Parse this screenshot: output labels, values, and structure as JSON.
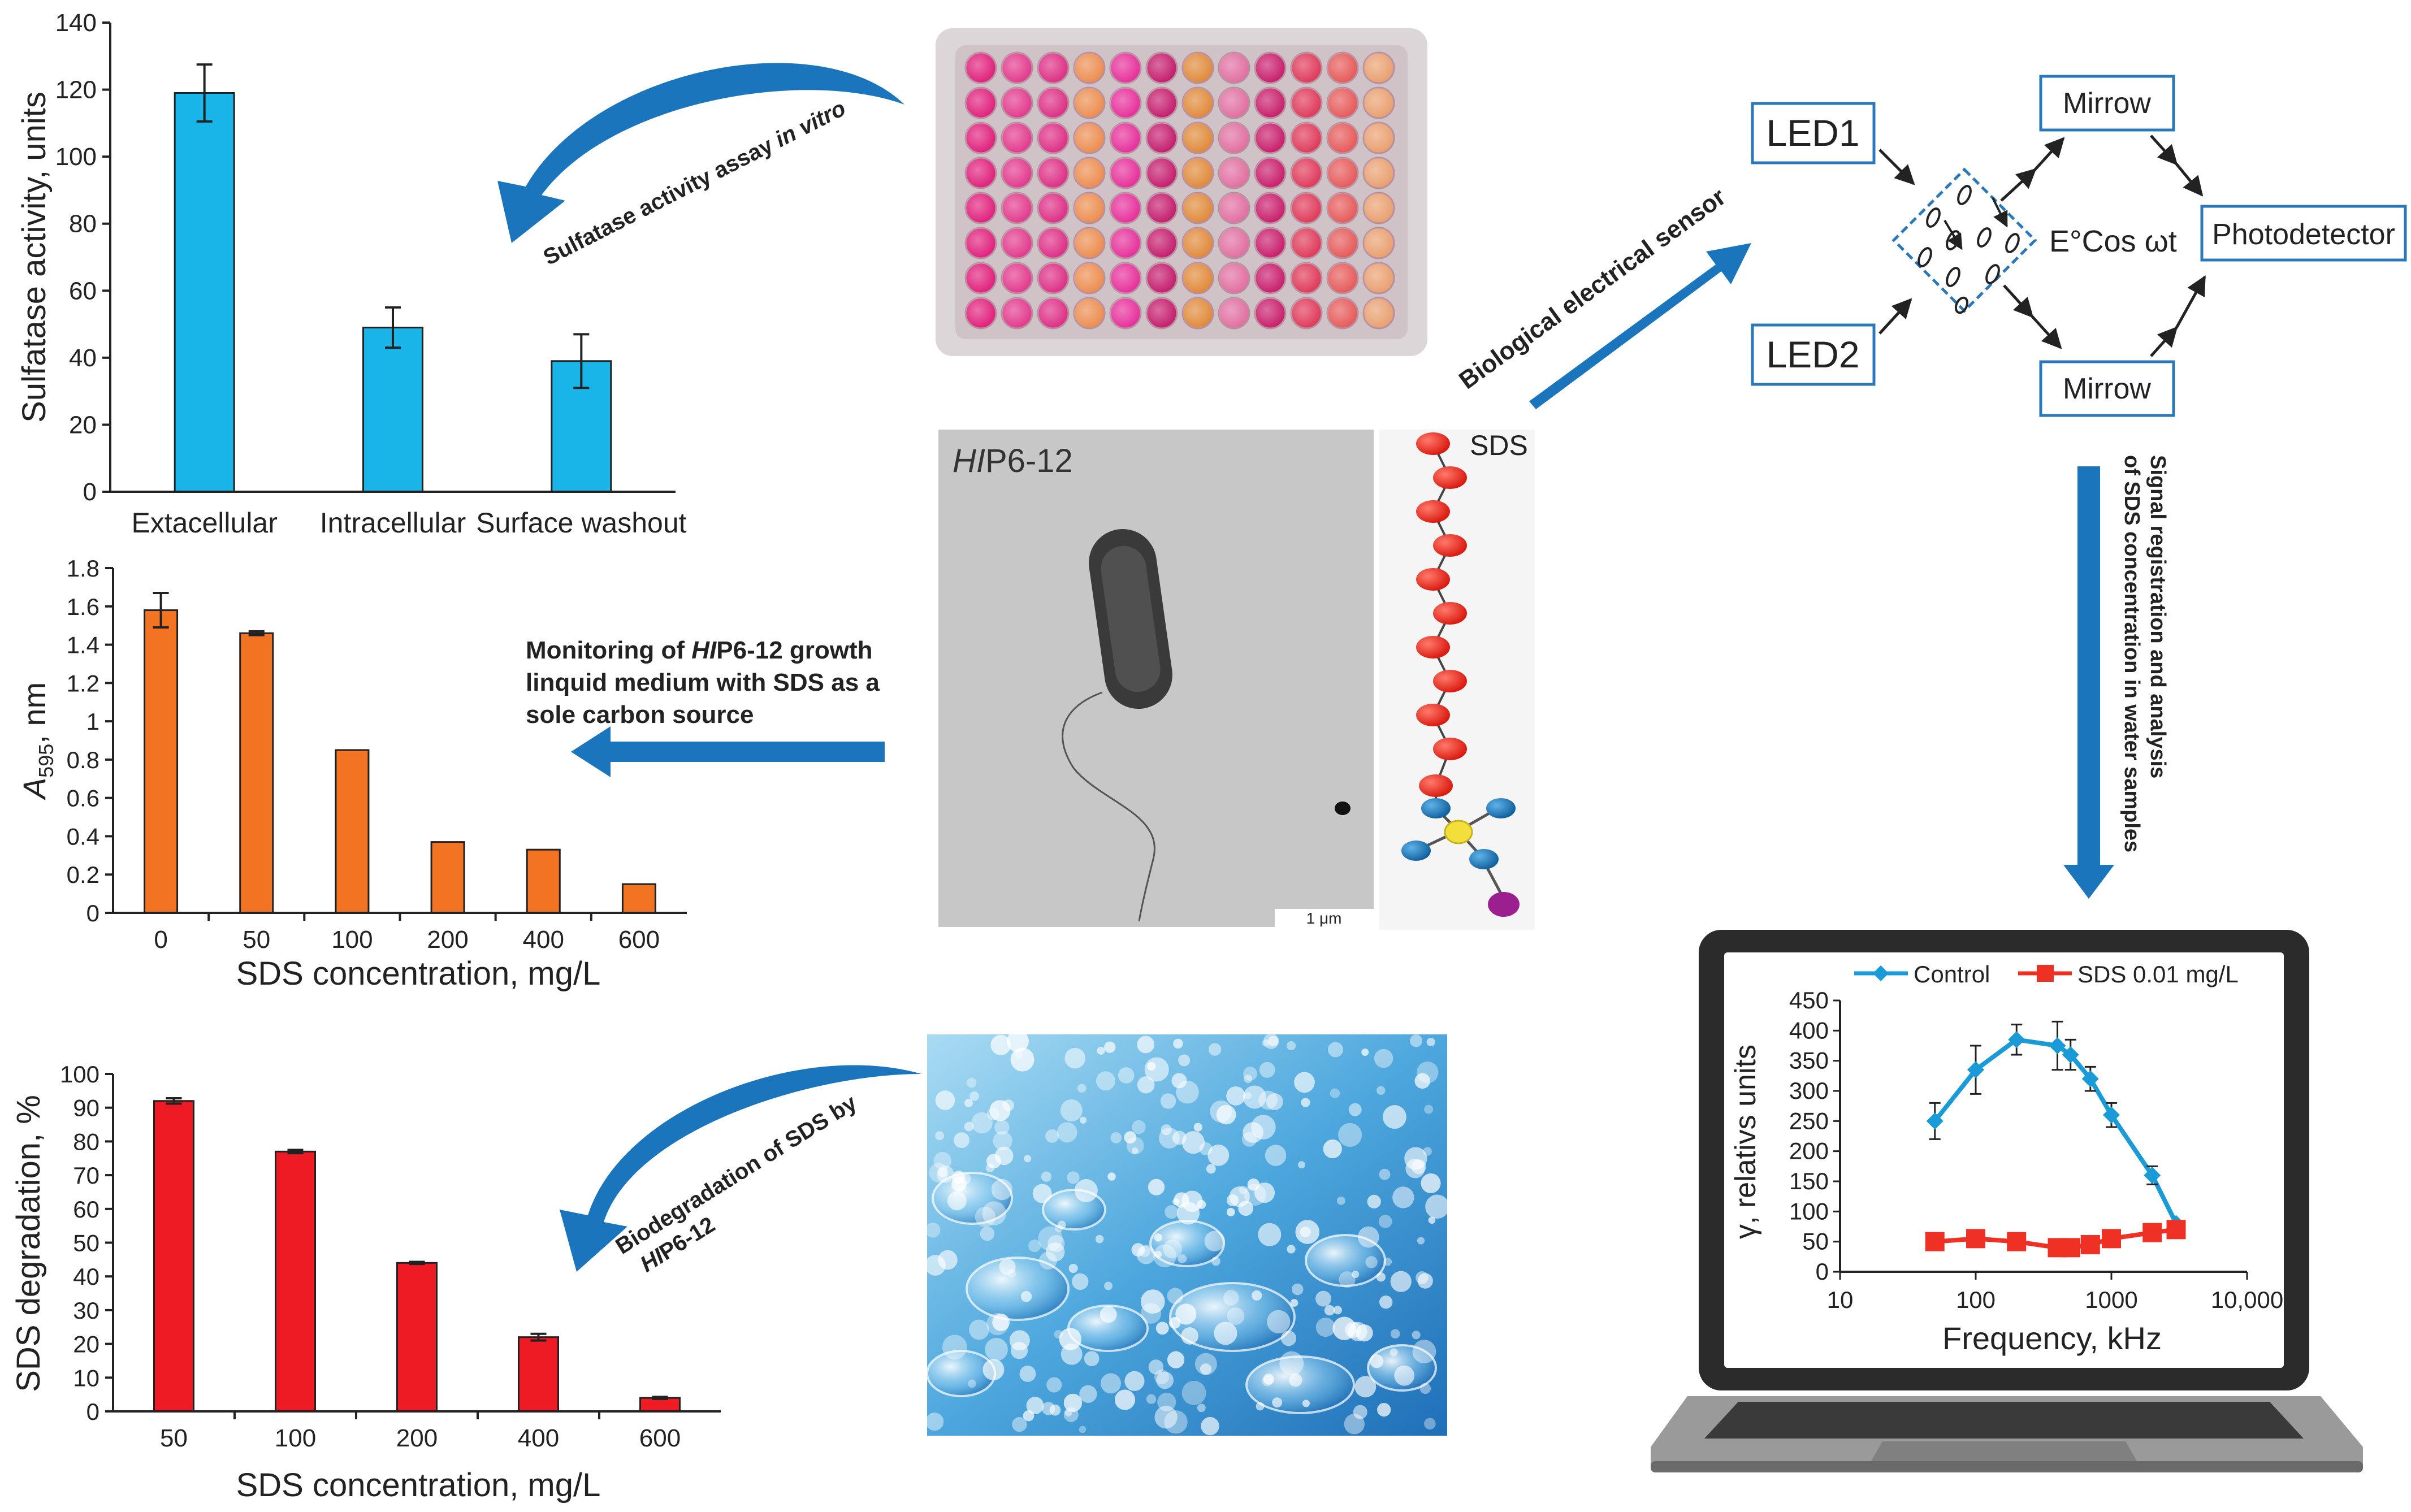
{
  "chart_data": [
    {
      "type": "bar",
      "categories": [
        "Extacellular",
        "Intracellular",
        "Surface washout"
      ],
      "values": [
        119,
        49,
        39
      ],
      "errors": [
        8.5,
        6,
        8
      ],
      "ylabel": "Sulfatase activity, units",
      "ylim": [
        0,
        140
      ],
      "yticks": [
        0,
        20,
        40,
        60,
        80,
        100,
        120,
        140
      ],
      "color": "#19b4e8"
    },
    {
      "type": "bar",
      "categories": [
        "0",
        "50",
        "100",
        "200",
        "400",
        "600"
      ],
      "values": [
        1.58,
        1.46,
        0.85,
        0.37,
        0.33,
        0.15
      ],
      "errors": [
        0.09,
        0.01,
        0,
        0,
        0,
        0
      ],
      "ylabel_main": "A",
      "ylabel_sub": "595",
      "ylabel_rest": ", nm",
      "xlabel": "SDS concentration, mg/L",
      "ylim": [
        0,
        1.8
      ],
      "yticks": [
        "0",
        "0.2",
        "0.4",
        "0.6",
        "0.8",
        "1",
        "1.2",
        "1.4",
        "1.6",
        "1.8"
      ],
      "color": "#f27321"
    },
    {
      "type": "bar",
      "categories": [
        "50",
        "100",
        "200",
        "400",
        "600"
      ],
      "values": [
        92,
        77,
        44,
        22,
        4
      ],
      "errors": [
        0.8,
        0.5,
        0.3,
        1,
        0.3
      ],
      "ylabel": "SDS degradation, %",
      "xlabel": "SDS concentration, mg/L",
      "ylim": [
        0,
        100
      ],
      "yticks": [
        0,
        10,
        20,
        30,
        40,
        50,
        60,
        70,
        80,
        90,
        100
      ],
      "color": "#ee1b24"
    },
    {
      "type": "line",
      "xscale": "log",
      "xlabel": "Frequency, kHz",
      "ylabel": "γ, relativs units",
      "xlim": [
        10,
        10000
      ],
      "xticks": [
        "10",
        "100",
        "1000",
        "10,000"
      ],
      "ylim": [
        0,
        450
      ],
      "yticks": [
        0,
        50,
        100,
        150,
        200,
        250,
        300,
        350,
        400,
        450
      ],
      "series": [
        {
          "name": "Control",
          "color": "#1a9ad6",
          "x": [
            50,
            100,
            200,
            400,
            500,
            700,
            1000,
            2000,
            3000
          ],
          "y": [
            250,
            335,
            385,
            375,
            360,
            320,
            260,
            160,
            80
          ],
          "err": [
            30,
            40,
            25,
            40,
            25,
            20,
            20,
            15,
            0
          ]
        },
        {
          "name": "SDS 0.01 mg/L",
          "color": "#ee3124",
          "x": [
            50,
            100,
            200,
            400,
            500,
            700,
            1000,
            2000,
            3000
          ],
          "y": [
            50,
            55,
            50,
            40,
            40,
            45,
            55,
            65,
            70
          ],
          "err": [
            0,
            0,
            0,
            0,
            0,
            0,
            0,
            0,
            0
          ]
        }
      ],
      "legend": "top"
    }
  ],
  "labels": {
    "sulfatase_arrow": [
      "Sulfatase activity assay ",
      "in vitro"
    ],
    "monitoring": [
      "Monitoring of ",
      "HI",
      "P6-12 growth",
      "linquid medium with SDS as a",
      "sole carbon source"
    ],
    "biodegradation": [
      "Biodegradation of SDS by",
      "HI",
      "P6-12"
    ],
    "biosensor": "Biological electrical sensor",
    "signal_line1": "Signal registration and analysis",
    "signal_line2": "of SDS concentration in water samples",
    "micro_title_italic": "HI",
    "micro_title_rest": "P6-12",
    "scale_bar": "1 μm",
    "sds_molecule": "SDS"
  },
  "sensor": {
    "led1": "LED1",
    "led2": "LED2",
    "mirror_top": "Mirrow",
    "mirror_bottom": "Mirrow",
    "photodetector": "Photodetector",
    "formula": "E°Cos ωt"
  }
}
